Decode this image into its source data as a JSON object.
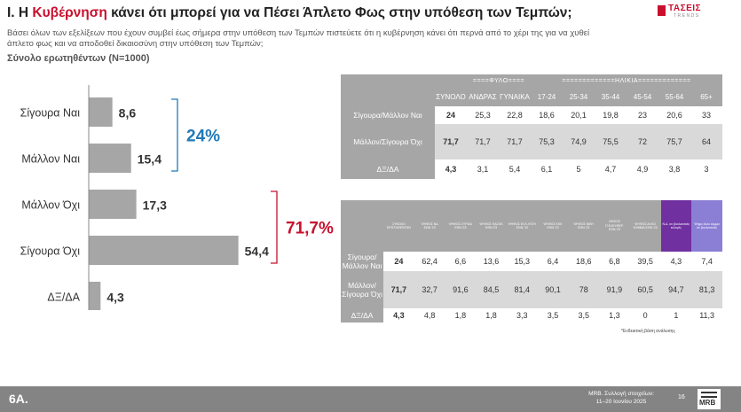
{
  "header": {
    "title_prefix": "I. Η ",
    "title_highlight": "Κυβέρνηση",
    "title_rest": " κάνει ότι μπορεί για να Πέσει Άπλετο Φως στην υπόθεση των Τεμπών;",
    "subtitle": "Βάσει όλων των εξελίξεων που έχουν συμβεί έως σήμερα στην υπόθεση των Τεμπών πιστεύετε ότι η κυβέρνηση κάνει ότι περνά από το χέρι της για να χυθεί άπλετο φως και να αποδοθεί δικαιοσύνη στην υπόθεση των Τεμπών;",
    "sample": "Σύνολο ερωτηθέντων (N=1000)",
    "logo_name": "ΤΑΣΕΙΣ",
    "logo_sub": "TRENDS"
  },
  "chart_data": {
    "type": "bar",
    "orientation": "horizontal",
    "categories": [
      "Σίγουρα Ναι",
      "Μάλλον Ναι",
      "Μάλλον Όχι",
      "Σίγουρα Όχι",
      "ΔΞ/ΔΑ"
    ],
    "values": [
      8.6,
      15.4,
      17.3,
      54.4,
      4.3
    ],
    "value_labels": [
      "8,6",
      "15,4",
      "17,3",
      "54,4",
      "4,3"
    ],
    "bar_color": "#a6a6a6",
    "xlim": [
      0,
      60
    ],
    "grid": false,
    "groups": [
      {
        "label": "24%",
        "from": 0,
        "to": 1,
        "color": "#1f7ab8"
      },
      {
        "label": "71,7%",
        "from": 2,
        "to": 3,
        "color": "#c8102e"
      }
    ]
  },
  "table1": {
    "groups": [
      {
        "label": "====ΦΥΛΟ====",
        "span": 2
      },
      {
        "label": "=============ΗΛΙΚΙΑ=============",
        "span": 6
      }
    ],
    "headers": [
      "ΣΥΝΟΛΟ",
      "ΑΝΔΡΑΣ",
      "ΓΥΝΑΙΚΑ",
      "17-24",
      "25-34",
      "35-44",
      "45-54",
      "55-64",
      "65+"
    ],
    "rows": [
      {
        "label": "Σίγουρα/Μάλλον Ναι",
        "values": [
          "24",
          "25,3",
          "22,8",
          "18,6",
          "20,1",
          "19,8",
          "23",
          "20,6",
          "33"
        ]
      },
      {
        "label": "Μάλλον/Σίγουρα Όχι",
        "values": [
          "71,7",
          "71,7",
          "71,7",
          "75,3",
          "74,9",
          "75,5",
          "72",
          "75,7",
          "64"
        ]
      },
      {
        "label": "ΔΞ/ΔΑ",
        "values": [
          "4,3",
          "3,1",
          "5,4",
          "6,1",
          "5",
          "4,7",
          "4,9",
          "3,8",
          "3"
        ]
      }
    ]
  },
  "table2": {
    "headers": [
      "ΣΥΝΟΛΟ ΕΡΩΤΗΘΕΝΤΩΝ",
      "ΨΗΦΟΣ ΝΔ ΕΘΝ.'23",
      "ΨΗΦΟΣ ΣΥΡΙΖΑ ΕΘΝ.'23",
      "ΨΗΦΟΣ ΠΑΣΟΚ ΕΘΝ.'23",
      "ΨΗΦΟΣ ΕΛΛ.ΛΥΣΗ ΕΘΝ.'23",
      "ΨΗΦΟΣ ΚΚΕ ΕΘΝ.'23",
      "ΨΗΦΟΣ ΝΙΚΗ ΕΘΝ.'23",
      "ΨΗΦΟΣ Π.ΕΛΕΥΘΕΡ. ΕΘΝ.'23",
      "ΨΗΦΟΣ ΑΛΛΟ ΚΟΜΜΑ ΕΘΝ.'23",
      "Ν.Δ. σε βουλευτικές εκλογές",
      "Ψήφο άλλο κόμμα σε βουλευτικές"
    ],
    "rows": [
      {
        "label": "Σίγουρα/Μάλλον Ναι",
        "values": [
          "24",
          "62,4",
          "6,6",
          "13,6",
          "15,3",
          "6,4",
          "18,6",
          "6,8",
          "39,5",
          "4,3",
          "7,4"
        ]
      },
      {
        "label": "Μάλλον/Σίγουρα Όχι",
        "values": [
          "71,7",
          "32,7",
          "91,6",
          "84,5",
          "81,4",
          "90,1",
          "78",
          "91,9",
          "60,5",
          "94,7",
          "81,3"
        ]
      },
      {
        "label": "ΔΞ/ΔΑ",
        "values": [
          "4,3",
          "4,8",
          "1,8",
          "1,8",
          "3,3",
          "3,5",
          "3,5",
          "1,3",
          "0",
          "1",
          "11,3"
        ]
      }
    ],
    "note": "*Ενδεικτική βάση ανάλυσης"
  },
  "footer": {
    "code": "6A.",
    "source": "MRB. Συλλογή στοιχείων:\n11–20 Ιουνίου 2025",
    "page": "16",
    "logo": "MRB"
  }
}
